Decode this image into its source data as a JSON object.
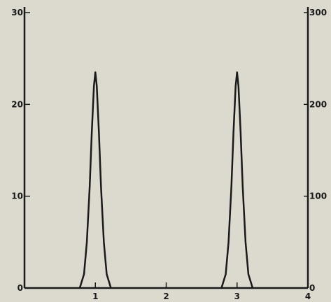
{
  "chart_data": {
    "type": "line",
    "title": "",
    "xlabel": "",
    "ylabel": "",
    "xlim": [
      0,
      4
    ],
    "ylim": [
      0,
      30
    ],
    "y2lim": [
      0,
      300
    ],
    "grid": false,
    "x_ticks": [
      {
        "value": 1,
        "label": "1"
      },
      {
        "value": 2,
        "label": "2"
      },
      {
        "value": 3,
        "label": "3"
      },
      {
        "value": 4,
        "label": "4"
      }
    ],
    "y_ticks": [
      {
        "value": 0,
        "label": "0"
      },
      {
        "value": 10,
        "label": "10"
      },
      {
        "value": 20,
        "label": "20"
      },
      {
        "value": 30,
        "label": "30"
      }
    ],
    "y2_ticks": [
      {
        "value": 0,
        "label": "0"
      },
      {
        "value": 100,
        "label": "100"
      },
      {
        "value": 200,
        "label": "200"
      },
      {
        "value": 300,
        "label": "300"
      }
    ],
    "series": [
      {
        "x": [
          0.78,
          0.84,
          0.88,
          0.92,
          0.95,
          0.98,
          1.0,
          1.02,
          1.05,
          1.08,
          1.12,
          1.16,
          1.22
        ],
        "y": [
          0,
          1.5,
          5,
          11,
          17,
          22,
          23.5,
          22,
          17,
          11,
          5,
          1.5,
          0
        ]
      },
      {
        "x": [
          2.78,
          2.84,
          2.88,
          2.92,
          2.95,
          2.98,
          3.0,
          3.02,
          3.05,
          3.08,
          3.12,
          3.16,
          3.22
        ],
        "y": [
          0,
          1.5,
          5,
          11,
          17,
          22,
          23.5,
          22,
          17,
          11,
          5,
          1.5,
          0
        ]
      }
    ],
    "colors": {
      "line": "#1a1a1a",
      "axis": "#1a1a1a",
      "background": "#dcd9cf"
    }
  }
}
